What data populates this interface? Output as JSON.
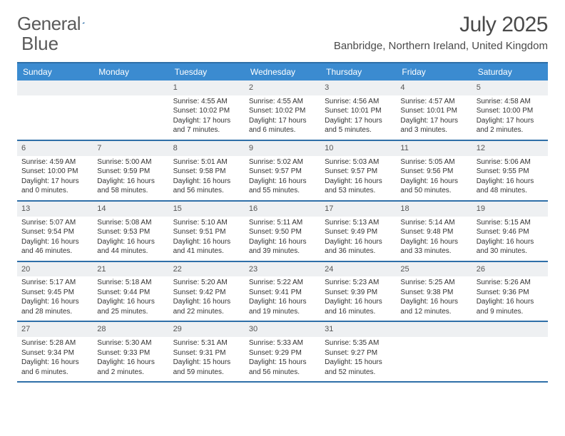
{
  "logo": {
    "text1": "General",
    "text2": "Blue",
    "tri_color": "#2f6fa8"
  },
  "title": "July 2025",
  "location": "Banbridge, Northern Ireland, United Kingdom",
  "colors": {
    "header_bg": "#3b8bd0",
    "rule": "#2f6fa8",
    "daynum_bg": "#eef0f2",
    "text": "#333333",
    "title_text": "#4a4a4a",
    "logo_text": "#5a5a5a"
  },
  "day_names": [
    "Sunday",
    "Monday",
    "Tuesday",
    "Wednesday",
    "Thursday",
    "Friday",
    "Saturday"
  ],
  "first_weekday_index": 2,
  "days": [
    {
      "n": 1,
      "sunrise": "4:55 AM",
      "sunset": "10:02 PM",
      "daylight": "17 hours and 7 minutes."
    },
    {
      "n": 2,
      "sunrise": "4:55 AM",
      "sunset": "10:02 PM",
      "daylight": "17 hours and 6 minutes."
    },
    {
      "n": 3,
      "sunrise": "4:56 AM",
      "sunset": "10:01 PM",
      "daylight": "17 hours and 5 minutes."
    },
    {
      "n": 4,
      "sunrise": "4:57 AM",
      "sunset": "10:01 PM",
      "daylight": "17 hours and 3 minutes."
    },
    {
      "n": 5,
      "sunrise": "4:58 AM",
      "sunset": "10:00 PM",
      "daylight": "17 hours and 2 minutes."
    },
    {
      "n": 6,
      "sunrise": "4:59 AM",
      "sunset": "10:00 PM",
      "daylight": "17 hours and 0 minutes."
    },
    {
      "n": 7,
      "sunrise": "5:00 AM",
      "sunset": "9:59 PM",
      "daylight": "16 hours and 58 minutes."
    },
    {
      "n": 8,
      "sunrise": "5:01 AM",
      "sunset": "9:58 PM",
      "daylight": "16 hours and 56 minutes."
    },
    {
      "n": 9,
      "sunrise": "5:02 AM",
      "sunset": "9:57 PM",
      "daylight": "16 hours and 55 minutes."
    },
    {
      "n": 10,
      "sunrise": "5:03 AM",
      "sunset": "9:57 PM",
      "daylight": "16 hours and 53 minutes."
    },
    {
      "n": 11,
      "sunrise": "5:05 AM",
      "sunset": "9:56 PM",
      "daylight": "16 hours and 50 minutes."
    },
    {
      "n": 12,
      "sunrise": "5:06 AM",
      "sunset": "9:55 PM",
      "daylight": "16 hours and 48 minutes."
    },
    {
      "n": 13,
      "sunrise": "5:07 AM",
      "sunset": "9:54 PM",
      "daylight": "16 hours and 46 minutes."
    },
    {
      "n": 14,
      "sunrise": "5:08 AM",
      "sunset": "9:53 PM",
      "daylight": "16 hours and 44 minutes."
    },
    {
      "n": 15,
      "sunrise": "5:10 AM",
      "sunset": "9:51 PM",
      "daylight": "16 hours and 41 minutes."
    },
    {
      "n": 16,
      "sunrise": "5:11 AM",
      "sunset": "9:50 PM",
      "daylight": "16 hours and 39 minutes."
    },
    {
      "n": 17,
      "sunrise": "5:13 AM",
      "sunset": "9:49 PM",
      "daylight": "16 hours and 36 minutes."
    },
    {
      "n": 18,
      "sunrise": "5:14 AM",
      "sunset": "9:48 PM",
      "daylight": "16 hours and 33 minutes."
    },
    {
      "n": 19,
      "sunrise": "5:15 AM",
      "sunset": "9:46 PM",
      "daylight": "16 hours and 30 minutes."
    },
    {
      "n": 20,
      "sunrise": "5:17 AM",
      "sunset": "9:45 PM",
      "daylight": "16 hours and 28 minutes."
    },
    {
      "n": 21,
      "sunrise": "5:18 AM",
      "sunset": "9:44 PM",
      "daylight": "16 hours and 25 minutes."
    },
    {
      "n": 22,
      "sunrise": "5:20 AM",
      "sunset": "9:42 PM",
      "daylight": "16 hours and 22 minutes."
    },
    {
      "n": 23,
      "sunrise": "5:22 AM",
      "sunset": "9:41 PM",
      "daylight": "16 hours and 19 minutes."
    },
    {
      "n": 24,
      "sunrise": "5:23 AM",
      "sunset": "9:39 PM",
      "daylight": "16 hours and 16 minutes."
    },
    {
      "n": 25,
      "sunrise": "5:25 AM",
      "sunset": "9:38 PM",
      "daylight": "16 hours and 12 minutes."
    },
    {
      "n": 26,
      "sunrise": "5:26 AM",
      "sunset": "9:36 PM",
      "daylight": "16 hours and 9 minutes."
    },
    {
      "n": 27,
      "sunrise": "5:28 AM",
      "sunset": "9:34 PM",
      "daylight": "16 hours and 6 minutes."
    },
    {
      "n": 28,
      "sunrise": "5:30 AM",
      "sunset": "9:33 PM",
      "daylight": "16 hours and 2 minutes."
    },
    {
      "n": 29,
      "sunrise": "5:31 AM",
      "sunset": "9:31 PM",
      "daylight": "15 hours and 59 minutes."
    },
    {
      "n": 30,
      "sunrise": "5:33 AM",
      "sunset": "9:29 PM",
      "daylight": "15 hours and 56 minutes."
    },
    {
      "n": 31,
      "sunrise": "5:35 AM",
      "sunset": "9:27 PM",
      "daylight": "15 hours and 52 minutes."
    }
  ],
  "labels": {
    "sunrise": "Sunrise: ",
    "sunset": "Sunset: ",
    "daylight": "Daylight: "
  }
}
